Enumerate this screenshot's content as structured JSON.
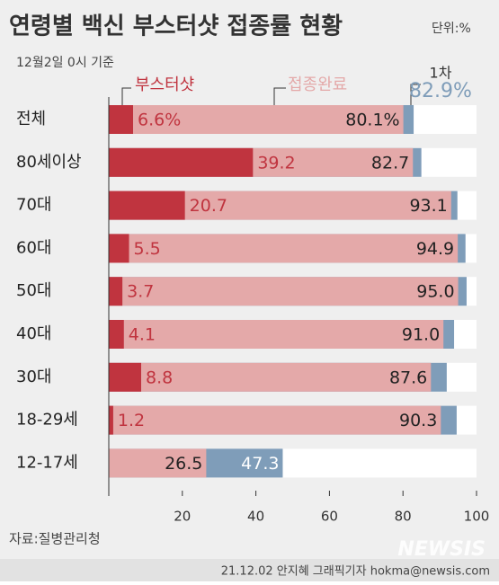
{
  "chart_data": {
    "type": "bar",
    "orientation": "horizontal",
    "overlap": true,
    "title": "연령별 백신 부스터샷 접종률 현황",
    "unit": "단위:%",
    "subtitle": "12월2일 0시 기준",
    "source": "자료:질병관리청",
    "credit": "21.12.02 안지혜 그래픽기자 hokma@newsis.com",
    "watermark": "NEWSIS",
    "categories": [
      "전체",
      "80세이상",
      "70대",
      "60대",
      "50대",
      "40대",
      "30대",
      "18-29세",
      "12-17세"
    ],
    "series": [
      {
        "name": "부스터샷",
        "color": "#c0343f",
        "label_color": "#c0343f",
        "values": [
          6.6,
          39.2,
          20.7,
          5.5,
          3.7,
          4.1,
          8.8,
          1.2,
          null
        ],
        "value_labels": [
          "6.6%",
          "39.2",
          "20.7",
          "5.5",
          "3.7",
          "4.1",
          "8.8",
          "1.2",
          null
        ]
      },
      {
        "name": "접종완료",
        "color": "#e4a9a9",
        "label_color": "#222222",
        "values": [
          80.1,
          82.7,
          93.1,
          94.9,
          95.0,
          91.0,
          87.6,
          90.3,
          26.5
        ],
        "value_labels": [
          "80.1%",
          "82.7",
          "93.1",
          "94.9",
          "95.0",
          "91.0",
          "87.6",
          "90.3",
          "26.5"
        ]
      },
      {
        "name": "1차",
        "color": "#7f9db9",
        "label_color": "#ffffff",
        "values": [
          82.9,
          85.0,
          94.8,
          97.0,
          97.3,
          93.9,
          91.9,
          94.6,
          47.3
        ],
        "value_labels": [
          "82.9%",
          null,
          null,
          null,
          null,
          null,
          null,
          null,
          "47.3"
        ]
      }
    ],
    "xlim": [
      0,
      100
    ],
    "xticks": [
      20,
      40,
      60,
      80,
      100
    ]
  }
}
